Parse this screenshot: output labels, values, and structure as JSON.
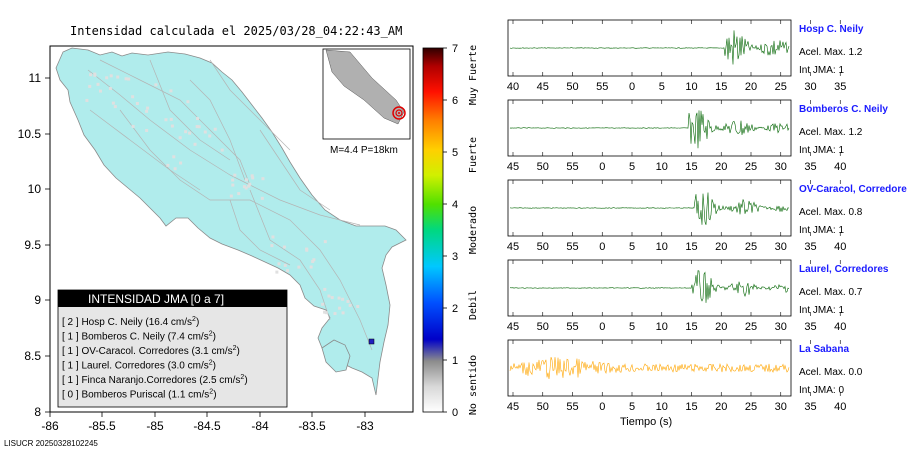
{
  "title": "Intensidad calculada el 2025/03/28_04:22:43_AM",
  "footer_id": "LISUCR 20250328102245",
  "map": {
    "lat_ticks": [
      "11",
      "10.5",
      "10",
      "9.5",
      "9",
      "8.5",
      "8"
    ],
    "lon_ticks": [
      "-86",
      "-85.5",
      "-85",
      "-84.5",
      "-84",
      "-83.5",
      "-83"
    ],
    "inset_label": "M=4.4 P=18km",
    "land_color": "#b0ecec",
    "sea_color": "#ffffff"
  },
  "legend": {
    "title": "INTENSIDAD JMA [0 a 7]",
    "items": [
      {
        "level": "[ 2 ]",
        "name": "Hosp C. Neily",
        "value": "(16.4 cm/s",
        "sup": "2",
        "close": ")"
      },
      {
        "level": "[ 1 ]",
        "name": "Bomberos C. Neily",
        "value": "(7.4 cm/s",
        "sup": "2",
        "close": ")"
      },
      {
        "level": "[ 1 ]",
        "name": "OV-Caracol. Corredores",
        "value": "(3.1 cm/s",
        "sup": "2",
        "close": ")"
      },
      {
        "level": "[ 1 ]",
        "name": "Laurel. Corredores",
        "value": "(3.0 cm/s",
        "sup": "2",
        "close": ")"
      },
      {
        "level": "[ 1 ]",
        "name": "Finca Naranjo.Corredores",
        "value": "(2.5 cm/s",
        "sup": "2",
        "close": ")"
      },
      {
        "level": "[ 0 ]",
        "name": "Bomberos Puriscal",
        "value": "(1.1 cm/s",
        "sup": "2",
        "close": ")"
      }
    ]
  },
  "colorbar": {
    "ticks": [
      "0",
      "1",
      "2",
      "3",
      "4",
      "5",
      "6",
      "7"
    ],
    "categories": [
      "No sentido",
      "Debil",
      "Moderado",
      "Fuerte",
      "Muy Fuerte"
    ]
  },
  "seismograms": {
    "xlabel": "Tiempo (s)",
    "panels": [
      {
        "station": "Hosp C. Neily",
        "acel": "Acel. Max. 1.2",
        "jma": "Int JMA: 1",
        "color": "#006400",
        "ticks": [
          "40",
          "45",
          "50",
          "55",
          "0",
          "5",
          "10",
          "15",
          "20",
          "25",
          "30",
          "35"
        ],
        "first_tick_sec": 40,
        "onset_sec": 15.5,
        "amp": 1.0
      },
      {
        "station": "Bomberos C. Neily",
        "acel": "Acel. Max. 1.2",
        "jma": "Int JMA: 1",
        "color": "#006400",
        "ticks": [
          "45",
          "50",
          "55",
          "0",
          "5",
          "10",
          "15",
          "20",
          "25",
          "30",
          "35",
          "40"
        ],
        "first_tick_sec": 45,
        "onset_sec": 14.5,
        "amp": 0.95
      },
      {
        "station": "OV-Caracol, Corredore",
        "acel": "Acel. Max. 0.8",
        "jma": "Int JMA: 1",
        "color": "#006400",
        "ticks": [
          "45",
          "50",
          "55",
          "0",
          "5",
          "10",
          "15",
          "20",
          "25",
          "30",
          "35",
          "40"
        ],
        "first_tick_sec": 45,
        "onset_sec": 15.5,
        "amp": 0.8
      },
      {
        "station": "Laurel, Corredores",
        "acel": "Acel. Max. 0.7",
        "jma": "Int JMA: 1",
        "color": "#006400",
        "ticks": [
          "45",
          "50",
          "55",
          "0",
          "5",
          "10",
          "15",
          "20",
          "25",
          "30",
          "35",
          "40"
        ],
        "first_tick_sec": 45,
        "onset_sec": 15.0,
        "amp": 0.8
      },
      {
        "station": "La Sabana",
        "acel": "Acel. Max. 0.0",
        "jma": "Int JMA: 0",
        "color": "#ffa500",
        "ticks": [
          "45",
          "50",
          "55",
          "0",
          "5",
          "10",
          "15",
          "20",
          "25",
          "30",
          "35",
          "40"
        ],
        "first_tick_sec": 45,
        "onset_sec": -999,
        "amp": 0.45
      }
    ]
  }
}
